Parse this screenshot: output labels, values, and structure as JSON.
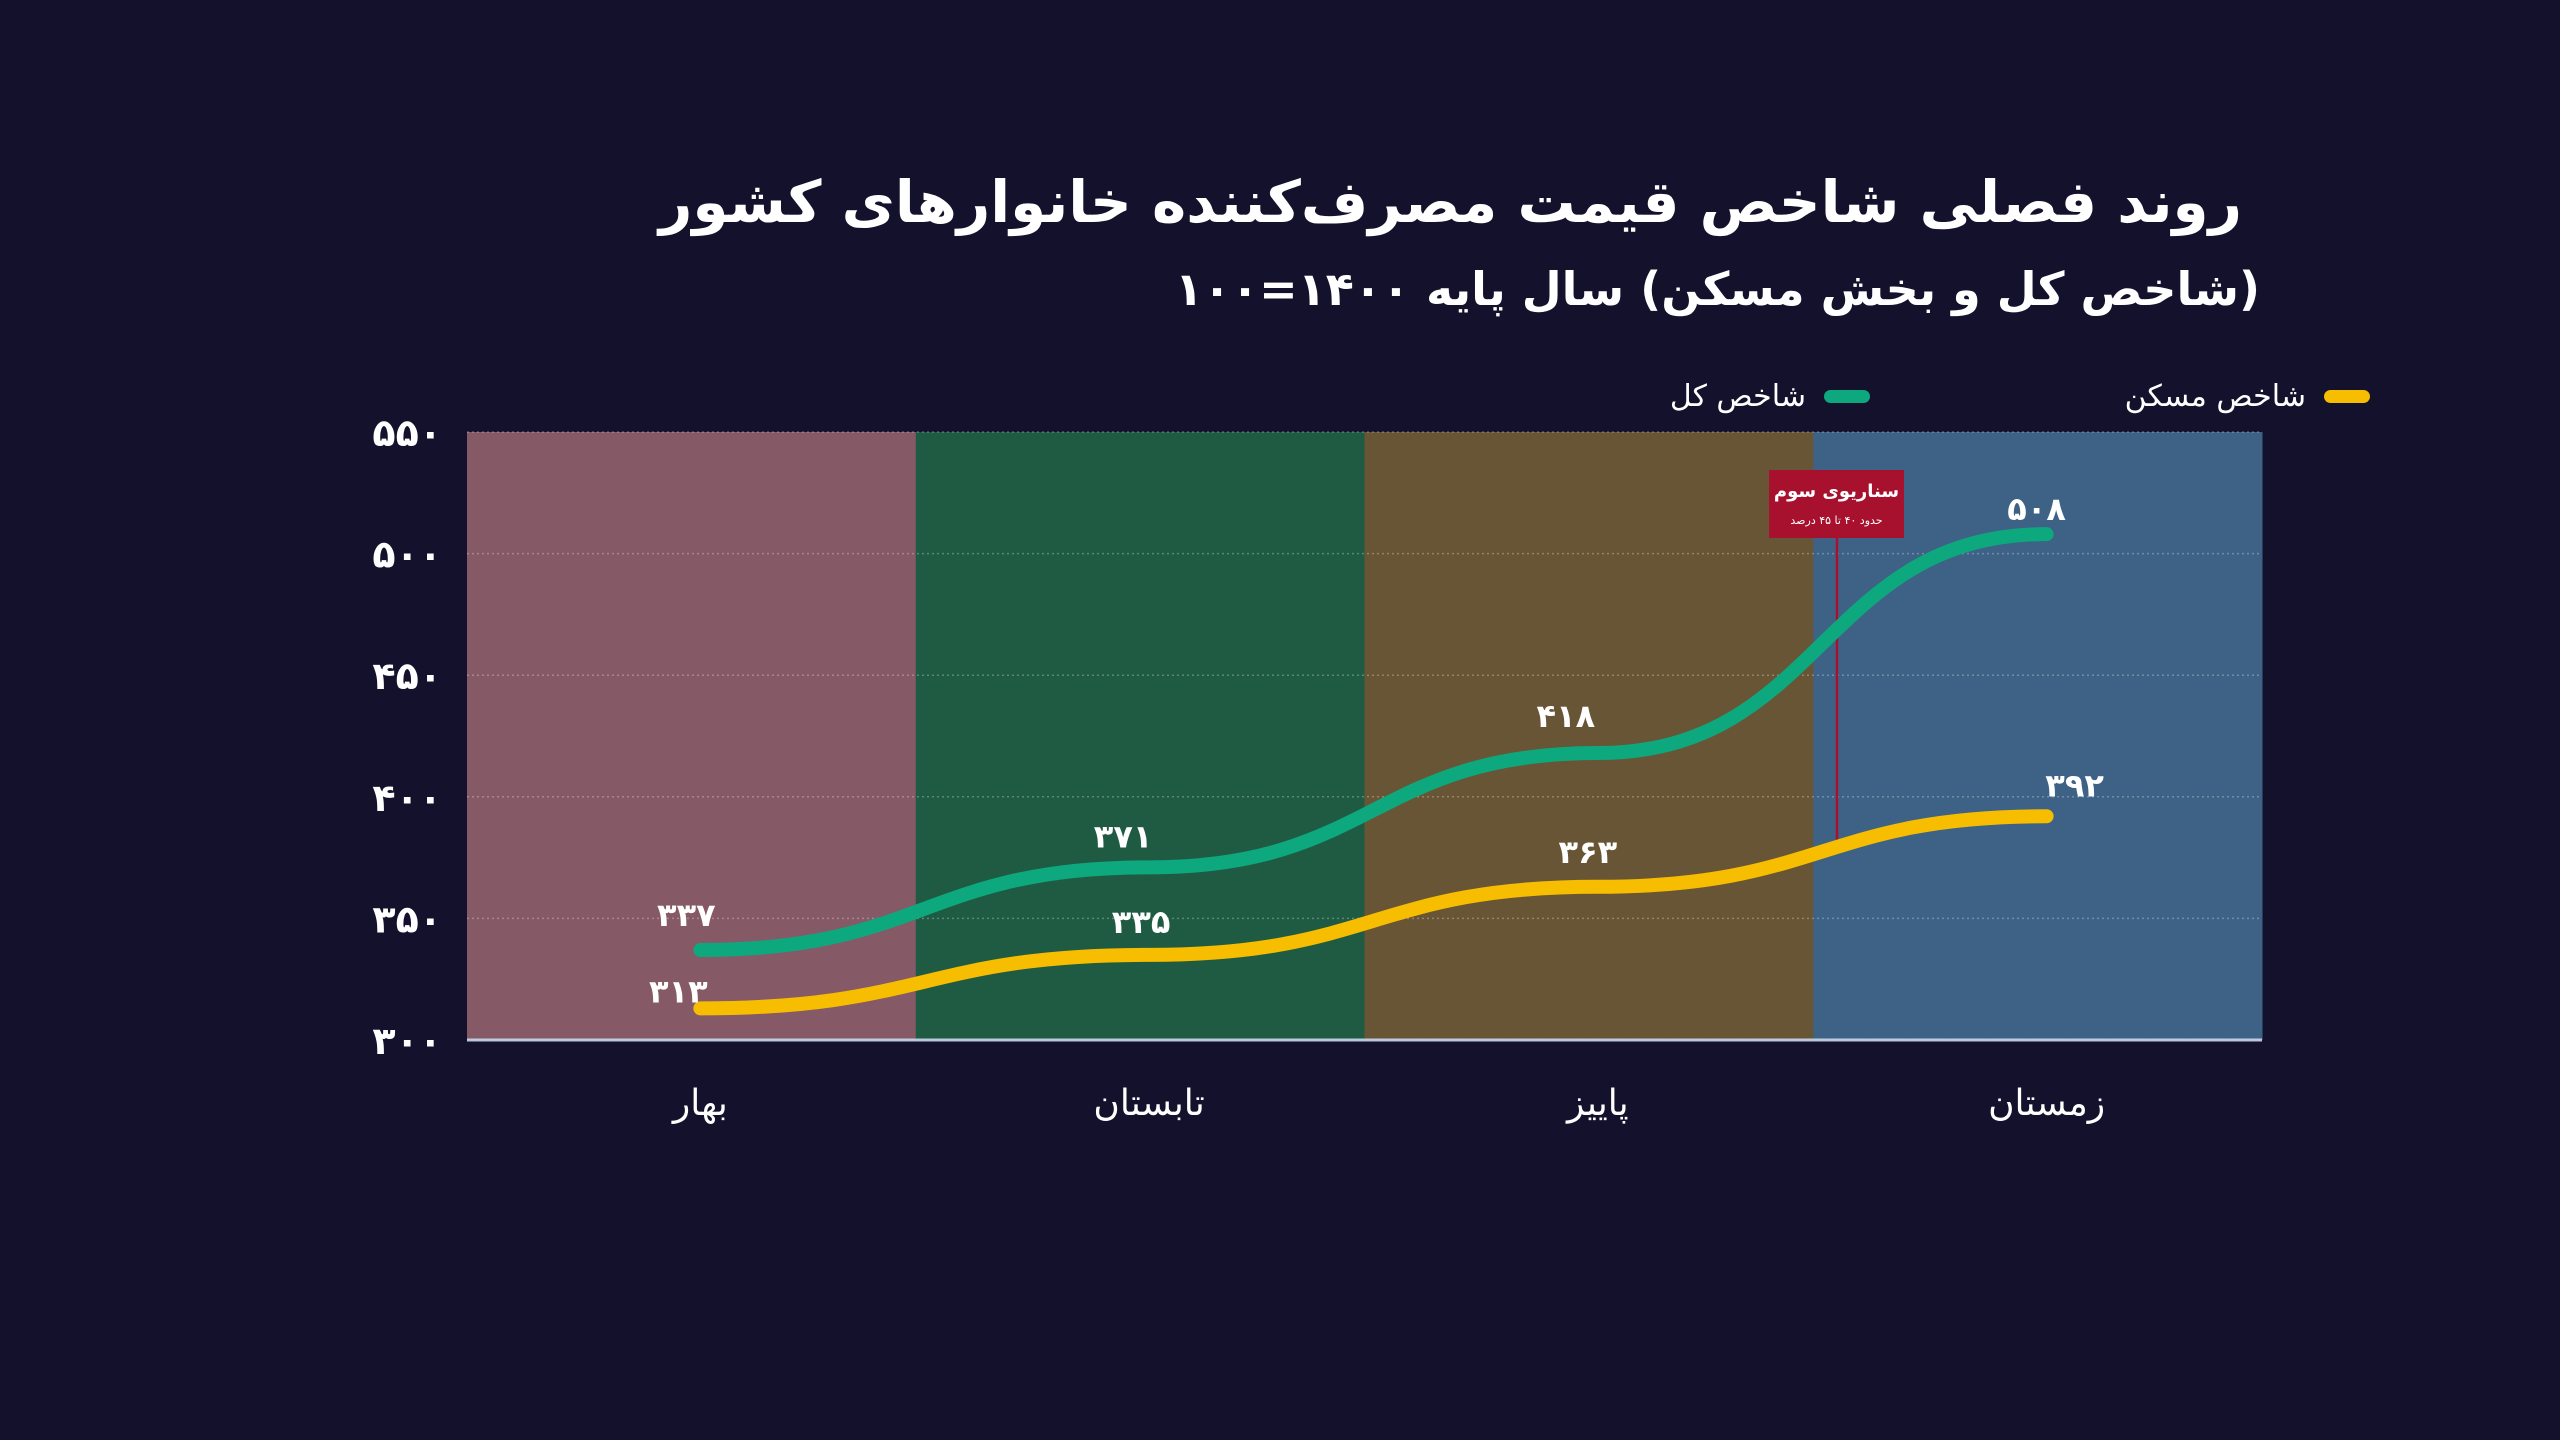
{
  "title": "روند فصلی شاخص قیمت مصرف‌کننده خانوارهای کشور",
  "subtitle": "(شاخص کل و بخش مسکن) سال پایه ۱۴۰۰=۱۰۰",
  "legend": {
    "housing": "شاخص مسکن",
    "total": "شاخص کل"
  },
  "annotation": {
    "title": "سناریوی سوم",
    "subtitle": "حدود ۴۰ تا ۴۵ درصد"
  },
  "colors": {
    "background": "#14112d",
    "total": "#0ea87e",
    "housing": "#f7bd00",
    "spring_band": "#855966",
    "summer_band": "#1f5b43",
    "autumn_band": "#685535",
    "winter_band": "#3d6285",
    "annotation": "#a8112e"
  },
  "chart_data": {
    "type": "line",
    "categories": [
      "بهار",
      "تابستان",
      "پاییز",
      "زمستان"
    ],
    "series": [
      {
        "name": "شاخص کل",
        "values": [
          337,
          371,
          418,
          508
        ],
        "labels": [
          "۳۳۷",
          "۳۷۱",
          "۴۱۸",
          "۵۰۸"
        ]
      },
      {
        "name": "شاخص مسکن",
        "values": [
          313,
          335,
          363,
          392
        ],
        "labels": [
          "۳۱۳",
          "۳۳۵",
          "۳۶۳",
          "۳۹۲"
        ]
      }
    ],
    "ylim": [
      300,
      550
    ],
    "yticks": [
      300,
      350,
      400,
      450,
      500,
      550
    ],
    "ytick_labels": [
      "۳۰۰",
      "۳۵۰",
      "۴۰۰",
      "۴۵۰",
      "۵۰۰",
      "۵۵۰"
    ],
    "grid": true,
    "legend_position": "top-right",
    "annotation_target": {
      "series": "شاخص مسکن",
      "category": "زمستان"
    }
  }
}
